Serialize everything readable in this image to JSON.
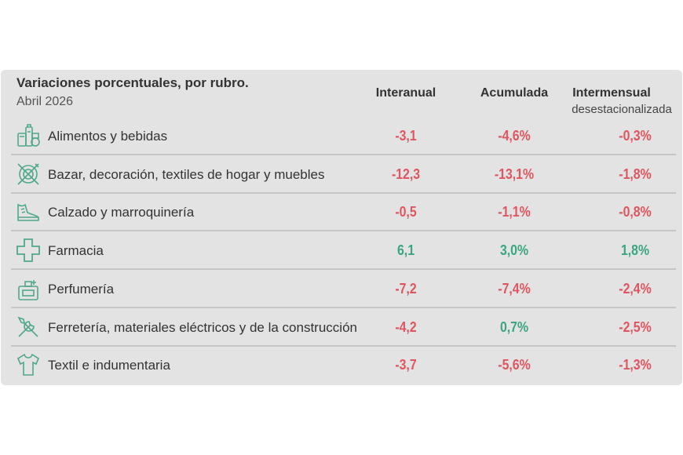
{
  "chart_data": {
    "type": "table",
    "title": "Variaciones porcentuales, por rubro.",
    "subtitle": "Abril 2026",
    "columns": [
      {
        "label": "Interanual",
        "sub": ""
      },
      {
        "label": "Acumulada",
        "sub": ""
      },
      {
        "label": "Intermensual",
        "sub": "desestacionalizada"
      }
    ],
    "rows": [
      {
        "label": "Alimentos y bebidas",
        "icon": "food-drinks-icon",
        "values": [
          "-3,1",
          "-4,6%",
          "-0,3%"
        ],
        "numeric": [
          -3.1,
          -4.6,
          -0.3
        ]
      },
      {
        "label": "Bazar, decoración, textiles de hogar y muebles",
        "icon": "cutlery-plate-icon",
        "values": [
          "-12,3",
          "-13,1%",
          "-1,8%"
        ],
        "numeric": [
          -12.3,
          -13.1,
          -1.8
        ]
      },
      {
        "label": "Calzado y marroquinería",
        "icon": "shoe-icon",
        "values": [
          "-0,5",
          "-1,1%",
          "-0,8%"
        ],
        "numeric": [
          -0.5,
          -1.1,
          -0.8
        ]
      },
      {
        "label": "Farmacia",
        "icon": "pharmacy-cross-icon",
        "values": [
          "6,1",
          "3,0%",
          "1,8%"
        ],
        "numeric": [
          6.1,
          3.0,
          1.8
        ]
      },
      {
        "label": "Perfumería",
        "icon": "perfume-icon",
        "values": [
          "-7,2",
          "-7,4%",
          "-2,4%"
        ],
        "numeric": [
          -7.2,
          -7.4,
          -2.4
        ]
      },
      {
        "label": "Ferretería, materiales eléctricos y de la construcción",
        "icon": "tools-icon",
        "values": [
          "-4,2",
          "0,7%",
          "-2,5%"
        ],
        "numeric": [
          -4.2,
          0.7,
          -2.5
        ]
      },
      {
        "label": "Textil e indumentaria",
        "icon": "shirt-icon",
        "values": [
          "-3,7",
          "-5,6%",
          "-1,3%"
        ],
        "numeric": [
          -3.7,
          -5.6,
          -1.3
        ]
      }
    ],
    "colors": {
      "negative": "#e0555f",
      "positive": "#3aa57f",
      "icon": "#4fa88a"
    }
  }
}
